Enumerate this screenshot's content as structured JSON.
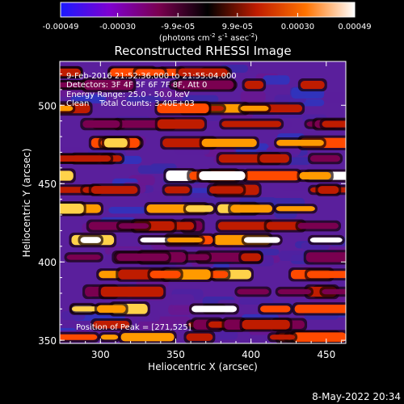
{
  "colorbar": {
    "ticks": [
      {
        "label": "-0.00049",
        "value": -0.00049
      },
      {
        "label": "-0.00030",
        "value": -0.0003
      },
      {
        "label": "-9.9e-05",
        "value": -9.9e-05
      },
      {
        "label": "9.9e-05",
        "value": 9.9e-05
      },
      {
        "label": "0.00030",
        "value": 0.0003
      },
      {
        "label": "0.00049",
        "value": 0.00049
      }
    ],
    "units_prefix": "(photons cm",
    "units_exp1": "-2",
    "units_mid": " s",
    "units_exp2": "-1",
    "units_mid2": " asec",
    "units_exp3": "-2",
    "units_suffix": ")",
    "range": [
      -0.00049,
      0.00049
    ],
    "colors": [
      "#1a1aff",
      "#7f00d0",
      "#7a0050",
      "#000000",
      "#bf1c00",
      "#ff7300",
      "#ffffff"
    ]
  },
  "chart_data": {
    "type": "heatmap",
    "title": "Reconstructed RHESSI Image",
    "xlabel": "Heliocentric X (arcsec)",
    "ylabel": "Heliocentric Y (arcsec)",
    "xlim": [
      273,
      463
    ],
    "ylim": [
      348,
      528
    ],
    "xticks": [
      300,
      350,
      400,
      450
    ],
    "yticks": [
      350,
      400,
      450,
      500
    ],
    "peak_x": 271,
    "peak_y": 525,
    "annotations": [
      "9-Feb-2016 21:52:36.000 to 21:55:04.000",
      "Detectors: 3F 4F 5F 6F 7F 8F, Att 0",
      "Energy Range: 25.0 - 50.0 keV",
      "Clean    Total Counts: 3.40E+03"
    ],
    "peak_label": "Position of Peak = [271,525]",
    "bands": [
      {
        "y": 521,
        "level": 0.55
      },
      {
        "y": 513,
        "level": 0.2
      },
      {
        "y": 498,
        "level": 0.7
      },
      {
        "y": 488,
        "level": 0.3
      },
      {
        "y": 476,
        "level": 0.8
      },
      {
        "y": 466,
        "level": 0.35
      },
      {
        "y": 455,
        "level": 1.0
      },
      {
        "y": 446,
        "level": 0.3
      },
      {
        "y": 434,
        "level": 0.85
      },
      {
        "y": 423,
        "level": 0.25
      },
      {
        "y": 414,
        "level": 0.9
      },
      {
        "y": 403,
        "level": 0.2
      },
      {
        "y": 392,
        "level": 0.75
      },
      {
        "y": 381,
        "level": 0.2
      },
      {
        "y": 370,
        "level": 0.95
      },
      {
        "y": 360,
        "level": 0.3
      },
      {
        "y": 352,
        "level": 0.6
      }
    ]
  },
  "footer": {
    "timestamp": "8-May-2022 20:34"
  }
}
